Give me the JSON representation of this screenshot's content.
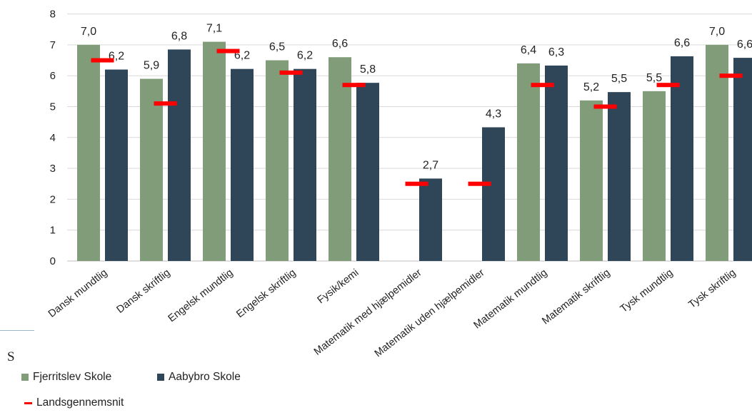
{
  "chart_data": {
    "type": "bar",
    "categories": [
      "Dansk mundtlig",
      "Dansk skriftlig",
      "Engelsk mundtlig",
      "Engelsk skriftlig",
      "Fysik/kemi",
      "Matematik med hjælpemidler",
      "Matematik uden hjælpemidler",
      "Matematik mundtlig",
      "Matematik skriftlig",
      "Tysk mundtlig",
      "Tysk skriftlig"
    ],
    "series": [
      {
        "name": "Fjerritslev Skole",
        "color": "#819C79",
        "values": [
          7.0,
          5.9,
          7.1,
          6.5,
          6.6,
          null,
          null,
          6.4,
          5.2,
          5.5,
          7.0
        ],
        "labels": [
          "7,0",
          "5,9",
          "7,1",
          "6,5",
          "6,6",
          "",
          "",
          "6,4",
          "5,2",
          "5,5",
          "7,0"
        ]
      },
      {
        "name": "Aabybro Skole",
        "color": "#2F4659",
        "values": [
          6.2,
          6.85,
          6.22,
          6.22,
          5.77,
          2.67,
          4.33,
          6.33,
          5.47,
          6.63,
          6.58
        ],
        "labels": [
          "6,2",
          "6,8",
          "6,2",
          "6,2",
          "5,8",
          "2,7",
          "4,3",
          "6,3",
          "5,5",
          "6,6",
          "6,6"
        ]
      }
    ],
    "landsgennemsnit": {
      "name": "Landsgennemsnit",
      "color": "#FF0000",
      "values": [
        6.5,
        5.1,
        6.8,
        6.1,
        5.7,
        2.5,
        2.5,
        5.7,
        5.0,
        5.7,
        6.0
      ]
    },
    "ylim": [
      0,
      8
    ],
    "yticks": [
      "0",
      "1",
      "2",
      "3",
      "4",
      "5",
      "6",
      "7",
      "8"
    ],
    "grid": true,
    "legend_position": "bottom-left",
    "title": "",
    "xlabel": "",
    "ylabel": ""
  },
  "legend": {
    "fjerritslev": "Fjerritslev Skole",
    "aabybro": "Aabybro Skole",
    "lands": "Landsgennemsnit"
  },
  "stray_text": "S"
}
